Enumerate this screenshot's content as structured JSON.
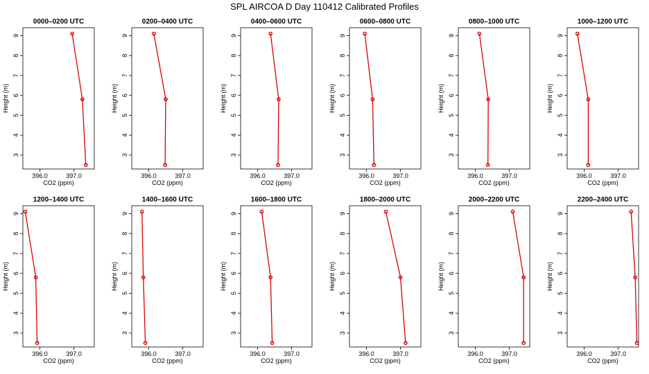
{
  "figure": {
    "title": "SPL AIRCOA D  Day 110412  Calibrated Profiles",
    "series_color": "#d40000"
  },
  "chart_data": [
    {
      "type": "line",
      "title": "0000–0200 UTC",
      "xlabel": "CO2 (ppm)",
      "ylabel": "Height (m)",
      "xlim": [
        395.5,
        397.6
      ],
      "ylim": [
        2.3,
        9.4
      ],
      "xticks": [
        396.0,
        397.0
      ],
      "yticks": [
        3,
        4,
        5,
        6,
        7,
        8,
        9
      ],
      "series": [
        {
          "x": [
            396.95,
            397.25,
            397.35
          ],
          "y": [
            9.1,
            5.8,
            2.5
          ]
        }
      ]
    },
    {
      "type": "line",
      "title": "0200–0400 UTC",
      "xlabel": "CO2 (ppm)",
      "ylabel": "Height (m)",
      "xlim": [
        395.5,
        397.6
      ],
      "ylim": [
        2.3,
        9.4
      ],
      "xticks": [
        396.0,
        397.0
      ],
      "yticks": [
        3,
        4,
        5,
        6,
        7,
        8,
        9
      ],
      "series": [
        {
          "x": [
            396.15,
            396.5,
            396.48
          ],
          "y": [
            9.1,
            5.8,
            2.5
          ]
        }
      ]
    },
    {
      "type": "line",
      "title": "0400–0600 UTC",
      "xlabel": "CO2 (ppm)",
      "ylabel": "Height (m)",
      "xlim": [
        395.5,
        397.6
      ],
      "ylim": [
        2.3,
        9.4
      ],
      "xticks": [
        396.0,
        397.0
      ],
      "yticks": [
        3,
        4,
        5,
        6,
        7,
        8,
        9
      ],
      "series": [
        {
          "x": [
            396.38,
            396.62,
            396.6
          ],
          "y": [
            9.1,
            5.8,
            2.5
          ]
        }
      ]
    },
    {
      "type": "line",
      "title": "0600–0800 UTC",
      "xlabel": "CO2 (ppm)",
      "ylabel": "Height (m)",
      "xlim": [
        395.5,
        397.6
      ],
      "ylim": [
        2.3,
        9.4
      ],
      "xticks": [
        396.0,
        397.0
      ],
      "yticks": [
        3,
        4,
        5,
        6,
        7,
        8,
        9
      ],
      "series": [
        {
          "x": [
            395.95,
            396.18,
            396.22
          ],
          "y": [
            9.1,
            5.8,
            2.5
          ]
        }
      ]
    },
    {
      "type": "line",
      "title": "0800–1000 UTC",
      "xlabel": "CO2 (ppm)",
      "ylabel": "Height (m)",
      "xlim": [
        395.5,
        397.6
      ],
      "ylim": [
        2.3,
        9.4
      ],
      "xticks": [
        396.0,
        397.0
      ],
      "yticks": [
        3,
        4,
        5,
        6,
        7,
        8,
        9
      ],
      "series": [
        {
          "x": [
            396.12,
            396.38,
            396.37
          ],
          "y": [
            9.1,
            5.8,
            2.5
          ]
        }
      ]
    },
    {
      "type": "line",
      "title": "1000–1200 UTC",
      "xlabel": "CO2 (ppm)",
      "ylabel": "Height (m)",
      "xlim": [
        395.5,
        397.6
      ],
      "ylim": [
        2.3,
        9.4
      ],
      "xticks": [
        396.0,
        397.0
      ],
      "yticks": [
        3,
        4,
        5,
        6,
        7,
        8,
        9
      ],
      "series": [
        {
          "x": [
            395.8,
            396.12,
            396.12
          ],
          "y": [
            9.1,
            5.8,
            2.5
          ]
        }
      ]
    },
    {
      "type": "line",
      "title": "1200–1400 UTC",
      "xlabel": "CO2 (ppm)",
      "ylabel": "Height (m)",
      "xlim": [
        395.5,
        397.6
      ],
      "ylim": [
        2.3,
        9.4
      ],
      "xticks": [
        396.0,
        397.0
      ],
      "yticks": [
        3,
        4,
        5,
        6,
        7,
        8,
        9
      ],
      "series": [
        {
          "x": [
            395.57,
            395.88,
            395.92
          ],
          "y": [
            9.1,
            5.8,
            2.5
          ]
        }
      ]
    },
    {
      "type": "line",
      "title": "1400–1600 UTC",
      "xlabel": "CO2 (ppm)",
      "ylabel": "Height (m)",
      "xlim": [
        395.5,
        397.6
      ],
      "ylim": [
        2.3,
        9.4
      ],
      "xticks": [
        396.0,
        397.0
      ],
      "yticks": [
        3,
        4,
        5,
        6,
        7,
        8,
        9
      ],
      "series": [
        {
          "x": [
            395.8,
            395.84,
            395.9
          ],
          "y": [
            9.1,
            5.8,
            2.5
          ]
        }
      ]
    },
    {
      "type": "line",
      "title": "1600–1800 UTC",
      "xlabel": "CO2 (ppm)",
      "ylabel": "Height (m)",
      "xlim": [
        395.5,
        397.6
      ],
      "ylim": [
        2.3,
        9.4
      ],
      "xticks": [
        396.0,
        397.0
      ],
      "yticks": [
        3,
        4,
        5,
        6,
        7,
        8,
        9
      ],
      "series": [
        {
          "x": [
            396.12,
            396.38,
            396.43
          ],
          "y": [
            9.1,
            5.8,
            2.5
          ]
        }
      ]
    },
    {
      "type": "line",
      "title": "1800–2000 UTC",
      "xlabel": "CO2 (ppm)",
      "ylabel": "Height (m)",
      "xlim": [
        395.5,
        397.6
      ],
      "ylim": [
        2.3,
        9.4
      ],
      "xticks": [
        396.0,
        397.0
      ],
      "yticks": [
        3,
        4,
        5,
        6,
        7,
        8,
        9
      ],
      "series": [
        {
          "x": [
            396.57,
            397.0,
            397.15
          ],
          "y": [
            9.1,
            5.8,
            2.5
          ]
        }
      ]
    },
    {
      "type": "line",
      "title": "2000–2200 UTC",
      "xlabel": "CO2 (ppm)",
      "ylabel": "Height (m)",
      "xlim": [
        395.5,
        397.6
      ],
      "ylim": [
        2.3,
        9.4
      ],
      "xticks": [
        396.0,
        397.0
      ],
      "yticks": [
        3,
        4,
        5,
        6,
        7,
        8,
        9
      ],
      "series": [
        {
          "x": [
            397.1,
            397.42,
            397.42
          ],
          "y": [
            9.1,
            5.8,
            2.5
          ]
        }
      ]
    },
    {
      "type": "line",
      "title": "2200–2400 UTC",
      "xlabel": "CO2 (ppm)",
      "ylabel": "Height (m)",
      "xlim": [
        395.5,
        397.6
      ],
      "ylim": [
        2.3,
        9.4
      ],
      "xticks": [
        396.0,
        397.0
      ],
      "yticks": [
        3,
        4,
        5,
        6,
        7,
        8,
        9
      ],
      "series": [
        {
          "x": [
            397.38,
            397.5,
            397.55
          ],
          "y": [
            9.1,
            5.8,
            2.5
          ]
        }
      ]
    }
  ]
}
